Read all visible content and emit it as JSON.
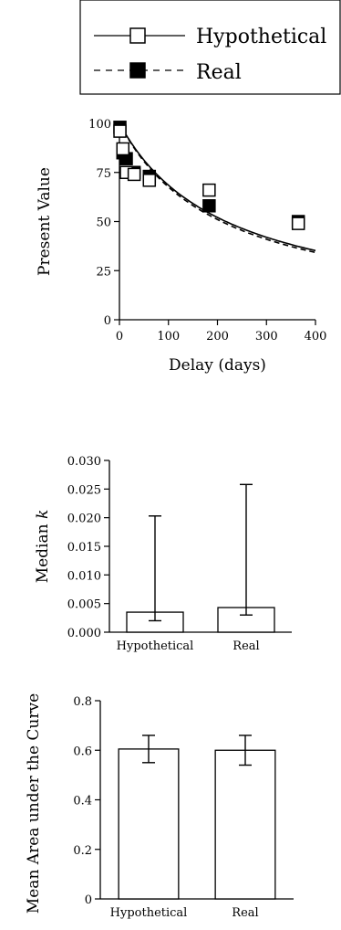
{
  "legend": {
    "entries": [
      {
        "label": "Hypothetical",
        "line_style": "solid",
        "marker": "open-square"
      },
      {
        "label": "Real",
        "line_style": "dashed",
        "marker": "filled-square"
      }
    ]
  },
  "chart_data": [
    {
      "type": "scatter",
      "title": "",
      "xlabel": "Delay (days)",
      "ylabel": "Present Value",
      "xlim": [
        0,
        400
      ],
      "ylim": [
        0,
        100
      ],
      "xticks": [
        0,
        100,
        200,
        300,
        400
      ],
      "yticks": [
        0,
        25,
        50,
        75,
        100
      ],
      "series": [
        {
          "name": "Hypothetical",
          "marker": "open-square",
          "line_style": "solid",
          "x": [
            1,
            7,
            14,
            30,
            61,
            183,
            365
          ],
          "y": [
            96,
            87,
            75,
            74,
            71,
            66,
            49
          ]
        },
        {
          "name": "Real",
          "marker": "filled-square",
          "line_style": "dashed",
          "x": [
            1,
            7,
            14,
            30,
            61,
            183,
            365
          ],
          "y": [
            98,
            85,
            82,
            75,
            73,
            58,
            50
          ]
        }
      ],
      "fitted_curves": [
        {
          "series": "Hypothetical",
          "style": "solid",
          "k": 0.0046
        },
        {
          "series": "Real",
          "style": "dashed",
          "k": 0.0048
        }
      ]
    },
    {
      "type": "bar",
      "title": "",
      "xlabel": "",
      "ylabel": "Median k",
      "ylim": [
        0,
        0.03
      ],
      "yticks": [
        "0.000",
        "0.005",
        "0.010",
        "0.015",
        "0.020",
        "0.025",
        "0.030"
      ],
      "categories": [
        "Hypothetical",
        "Real"
      ],
      "values": [
        0.0035,
        0.0043
      ],
      "error_low": [
        0.002,
        0.003
      ],
      "error_high": [
        0.0203,
        0.0258
      ]
    },
    {
      "type": "bar",
      "title": "",
      "xlabel": "",
      "ylabel": "Mean Area under the Curve",
      "ylim": [
        0,
        0.8
      ],
      "yticks": [
        "0",
        "0.2",
        "0.4",
        "0.6",
        "0.8"
      ],
      "categories": [
        "Hypothetical",
        "Real"
      ],
      "values": [
        0.605,
        0.6
      ],
      "error_low": [
        0.55,
        0.54
      ],
      "error_high": [
        0.66,
        0.66
      ]
    }
  ]
}
